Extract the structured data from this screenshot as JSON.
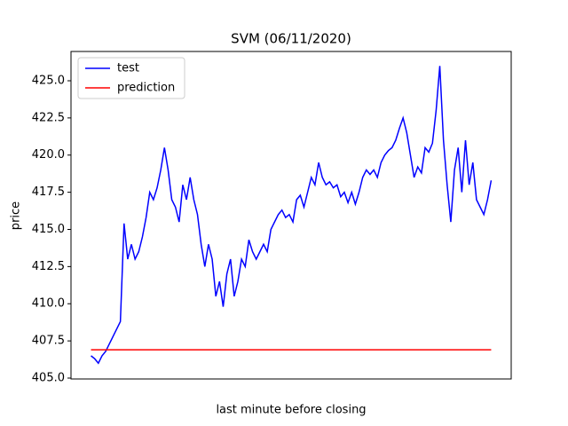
{
  "chart_data": {
    "type": "line",
    "title": "SVM (06/11/2020)",
    "xlabel": "last minute before closing",
    "ylabel": "price",
    "ylim": [
      404.94,
      426.97
    ],
    "yticks": [
      {
        "value": 405,
        "label": "405.0"
      },
      407.5,
      {
        "value": 410,
        "label": "410.0"
      },
      412.5,
      {
        "value": 415,
        "label": "415.0"
      },
      417.5,
      {
        "value": 420,
        "label": "420.0"
      },
      422.5,
      {
        "value": 425,
        "label": "425.0"
      }
    ],
    "legend": "upper left",
    "series": [
      {
        "name": "test",
        "color": "#0000ff",
        "values": [
          406.5,
          406.3,
          406.0,
          406.5,
          406.8,
          407.3,
          407.8,
          408.3,
          408.8,
          415.4,
          413,
          414,
          413,
          413.5,
          414.5,
          415.8,
          417.5,
          417,
          417.8,
          419,
          420.5,
          419,
          417,
          416.5,
          415.5,
          418,
          417,
          418.5,
          417,
          416,
          414,
          412.5,
          414,
          413,
          410.5,
          411.5,
          409.8,
          412,
          413,
          410.5,
          411.5,
          413,
          412.5,
          414.3,
          413.5,
          413,
          413.5,
          414,
          413.5,
          415,
          415.5,
          416,
          416.3,
          415.8,
          416,
          415.5,
          417,
          417.3,
          416.5,
          417.5,
          418.5,
          418,
          419.5,
          418.5,
          418,
          418.2,
          417.8,
          418,
          417.2,
          417.5,
          416.8,
          417.5,
          416.7,
          417.5,
          418.5,
          419,
          418.7,
          419,
          418.5,
          419.5,
          420,
          420.3,
          420.5,
          421,
          421.8,
          422.5,
          421.5,
          420,
          418.5,
          419.2,
          418.8,
          420.5,
          420.2,
          420.8,
          423,
          426,
          421,
          418,
          415.5,
          419,
          420.5,
          417.5,
          421,
          418,
          419.5,
          417,
          416.5,
          416,
          417,
          418.3
        ]
      },
      {
        "name": "prediction",
        "color": "#ff0000",
        "values": [
          406.9,
          406.9,
          406.9,
          406.9,
          406.9,
          406.9,
          406.9,
          406.9,
          406.9,
          406.9,
          406.9,
          406.9,
          406.9,
          406.9,
          406.9,
          406.9,
          406.9,
          406.9,
          406.9,
          406.9,
          406.9,
          406.9,
          406.9,
          406.9,
          406.9,
          406.9,
          406.9,
          406.9,
          406.9,
          406.9,
          406.9,
          406.9,
          406.9,
          406.9,
          406.9,
          406.9,
          406.9,
          406.9,
          406.9,
          406.9,
          406.9,
          406.9,
          406.9,
          406.9,
          406.9,
          406.9,
          406.9,
          406.9,
          406.9,
          406.9,
          406.9,
          406.9,
          406.9,
          406.9,
          406.9,
          406.9,
          406.9,
          406.9,
          406.9,
          406.9,
          406.9,
          406.9,
          406.9,
          406.9,
          406.9,
          406.9,
          406.9,
          406.9,
          406.9,
          406.9,
          406.9,
          406.9,
          406.9,
          406.9,
          406.9,
          406.9,
          406.9,
          406.9,
          406.9,
          406.9,
          406.9,
          406.9,
          406.9,
          406.9,
          406.9,
          406.9,
          406.9,
          406.9,
          406.9,
          406.9,
          406.9,
          406.9,
          406.9,
          406.9,
          406.9,
          406.9,
          406.9,
          406.9,
          406.9,
          406.9,
          406.9,
          406.9,
          406.9,
          406.9,
          406.9,
          406.9,
          406.9,
          406.9,
          406.9,
          406.9
        ]
      }
    ]
  }
}
